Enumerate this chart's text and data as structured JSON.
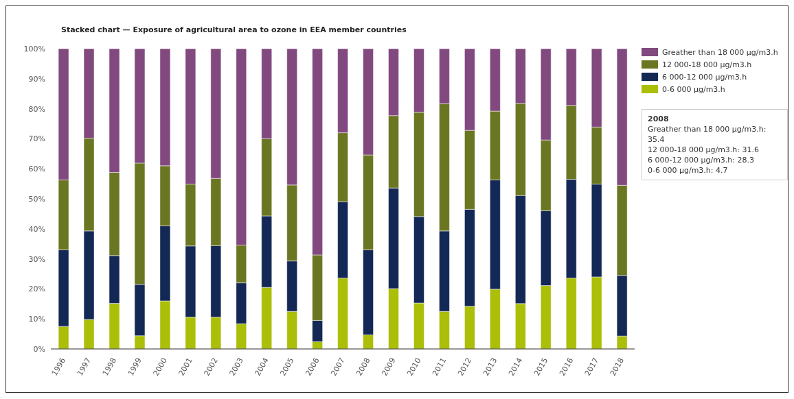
{
  "chart_data": {
    "type": "bar",
    "stacked": true,
    "title": "Stacked chart — Exposure of agricultural area to ozone in EEA member countries",
    "categories": [
      "1996",
      "1997",
      "1998",
      "1999",
      "2000",
      "2001",
      "2002",
      "2003",
      "2004",
      "2005",
      "2006",
      "2007",
      "2008",
      "2009",
      "2010",
      "2011",
      "2012",
      "2013",
      "2014",
      "2015",
      "2016",
      "2017",
      "2018"
    ],
    "series": [
      {
        "name": "0-6 000 µg/m3.h",
        "color": "#abbe08",
        "values": [
          7.5,
          9.8,
          15.2,
          4.4,
          16,
          10.6,
          10.6,
          8.4,
          20.5,
          12.5,
          2.4,
          23.6,
          4.7,
          20.1,
          15.3,
          12.5,
          14.2,
          19.9,
          15.1,
          21.1,
          23.6,
          24.0,
          4.3
        ]
      },
      {
        "name": "6 000-12 000 µg/m3.h",
        "color": "#142855",
        "values": [
          25.5,
          29.5,
          15.9,
          17.1,
          25,
          23.7,
          23.8,
          13.6,
          23.8,
          16.8,
          7.1,
          25.4,
          28.3,
          33.5,
          28.8,
          26.8,
          32.3,
          36.4,
          36.0,
          24.9,
          32.9,
          30.9,
          20.2
        ]
      },
      {
        "name": "12 000-18 000 µg/m3.h",
        "color": "#6b7622",
        "values": [
          23.3,
          30.9,
          27.7,
          40.4,
          20,
          20.6,
          22.4,
          12.6,
          25.7,
          25.3,
          21.8,
          23,
          31.6,
          24.1,
          34.7,
          42.4,
          26.3,
          22.9,
          30.7,
          23.6,
          24.6,
          19.0,
          30.0
        ]
      },
      {
        "name": "Greather than 18 000 µg/m3.h",
        "color": "#82497f",
        "values": [
          43.7,
          29.8,
          41.2,
          38.1,
          39,
          45.1,
          43.2,
          65.4,
          30,
          45.4,
          68.7,
          28,
          35.4,
          22.3,
          21.2,
          18.3,
          27.2,
          20.8,
          18.2,
          30.4,
          18.9,
          26.1,
          45.5
        ]
      }
    ],
    "ylim": [
      0,
      100
    ],
    "yticks": [
      {
        "value": 0,
        "label": "0%"
      },
      {
        "value": 10,
        "label": "10%"
      },
      {
        "value": 20,
        "label": "20%"
      },
      {
        "value": 30,
        "label": "30%"
      },
      {
        "value": 40,
        "label": "40%"
      },
      {
        "value": 50,
        "label": "50%"
      },
      {
        "value": 60,
        "label": "60%"
      },
      {
        "value": 70,
        "label": "70%"
      },
      {
        "value": 80,
        "label": "80%"
      },
      {
        "value": 90,
        "label": "90%"
      },
      {
        "value": 100,
        "label": "100%"
      }
    ],
    "grid": false,
    "legend": "top right",
    "annotations": [
      "2008",
      "Greather than 18 000 µg/m3.h: 35.4",
      "12 000-18 000 µg/m3.h: 31.6",
      "6 000-12 000 µg/m3.h: 28.3",
      "0-6 000 µg/m3.h: 4.7"
    ]
  }
}
